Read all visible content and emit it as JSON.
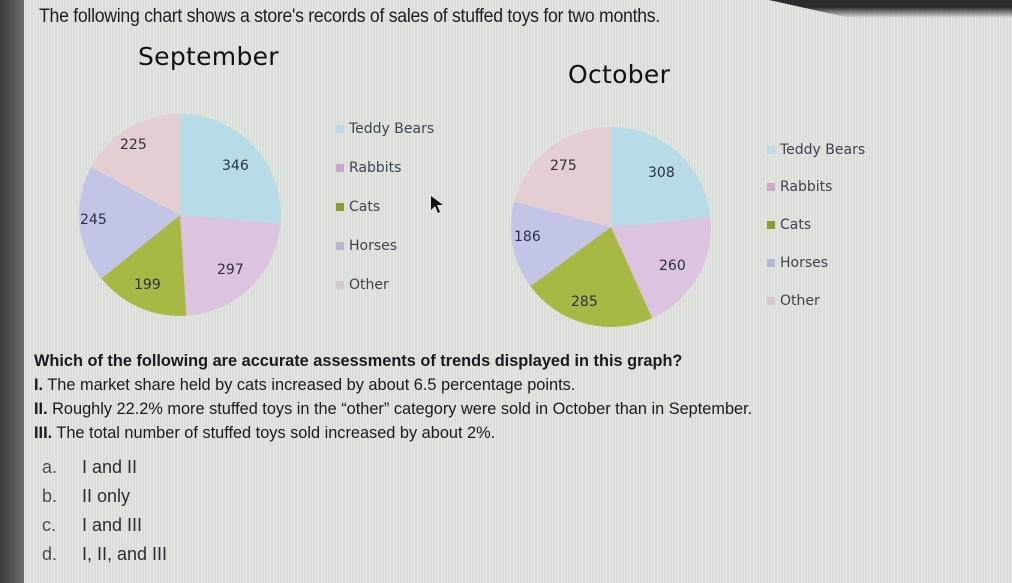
{
  "intro_text": "The following chart shows a store's records of sales of stuffed toys for two months.",
  "chart_data": [
    {
      "type": "pie",
      "title": "September",
      "categories": [
        "Teddy Bears",
        "Rabbits",
        "Cats",
        "Horses",
        "Other"
      ],
      "values": [
        346,
        297,
        199,
        245,
        225
      ],
      "colors": [
        "#b7dce8",
        "#dcc3df",
        "#a8b845",
        "#c3c5e6",
        "#e3cfd1"
      ],
      "legend_position": "right",
      "data_labels": true
    },
    {
      "type": "pie",
      "title": "October",
      "categories": [
        "Teddy Bears",
        "Rabbits",
        "Cats",
        "Horses",
        "Other"
      ],
      "values": [
        308,
        260,
        285,
        186,
        275
      ],
      "colors": [
        "#b7dce8",
        "#dcc3df",
        "#a8b845",
        "#c3c5e6",
        "#e3cfd1"
      ],
      "legend_position": "right",
      "data_labels": true
    }
  ],
  "september": {
    "title": "September",
    "labels": {
      "teddy": "346",
      "rabbits": "297",
      "cats": "199",
      "horses": "245",
      "other": "225"
    },
    "legend": [
      "Teddy Bears",
      "Rabbits",
      "Cats",
      "Horses",
      "Other"
    ]
  },
  "october": {
    "title": "October",
    "labels": {
      "teddy": "308",
      "rabbits": "260",
      "cats": "285",
      "horses": "186",
      "other": "275"
    },
    "legend": [
      "Teddy Bears",
      "Rabbits",
      "Cats",
      "Horses",
      "Other"
    ]
  },
  "colors": {
    "teddy": "#b7dce8",
    "rabbits": "#dcc3df",
    "cats": "#a8b845",
    "horses": "#c3c5e6",
    "other": "#e3cfd1"
  },
  "question": {
    "prompt": "Which of the following are accurate assessments of trends displayed in this graph?",
    "statements": [
      {
        "num": "I.",
        "text": " The market share held by cats increased by about 6.5 percentage points."
      },
      {
        "num": "II.",
        "text": " Roughly 22.2% more stuffed toys in the “other” category were sold in October than in September."
      },
      {
        "num": "III.",
        "text": " The total number of stuffed toys sold increased by about 2%."
      }
    ],
    "choices": [
      {
        "letter": "a.",
        "text": "I and II"
      },
      {
        "letter": "b.",
        "text": "II only"
      },
      {
        "letter": "c.",
        "text": "I and III"
      },
      {
        "letter": "d.",
        "text": "I, II, and III"
      }
    ]
  }
}
